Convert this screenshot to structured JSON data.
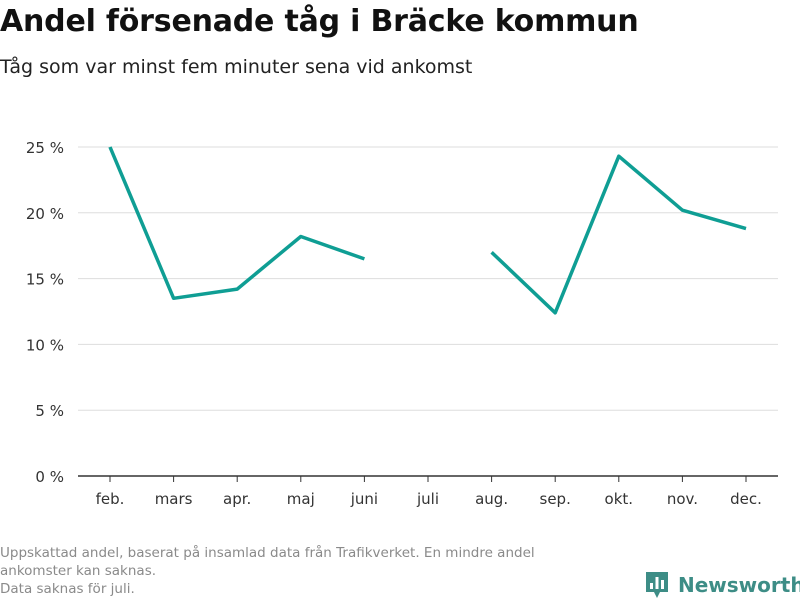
{
  "header": {
    "title": "Andel försenade tåg i Bräcke kommun",
    "subtitle": "Tåg som var minst fem minuter sena vid ankomst"
  },
  "footer": {
    "note_lines": [
      "Uppskattad andel, baserat på insamlad data från Trafikverket. En mindre andel",
      "ankomster kan saknas.",
      "Data saknas för juli."
    ],
    "brand": "Newsworthy",
    "brand_icon": "bar-chart-logo-icon"
  },
  "colors": {
    "line": "#0f9e94",
    "grid": "#dddddd",
    "axis": "#333333",
    "brand": "#3d8d86"
  },
  "chart_data": {
    "type": "line",
    "title": "Andel försenade tåg i Bräcke kommun",
    "subtitle": "Tåg som var minst fem minuter sena vid ankomst",
    "categories": [
      "feb.",
      "mars",
      "apr.",
      "maj",
      "juni",
      "juli",
      "aug.",
      "sep.",
      "okt.",
      "nov.",
      "dec."
    ],
    "series": [
      {
        "values": [
          25.0,
          13.5,
          14.2,
          18.2,
          16.5,
          null,
          17.0,
          12.4,
          24.3,
          20.2,
          18.8
        ]
      }
    ],
    "ylim": [
      0,
      25
    ],
    "yticks": [
      0,
      5,
      10,
      15,
      20,
      25
    ],
    "ytick_labels": [
      "0 %",
      "5 %",
      "10 %",
      "15 %",
      "20 %",
      "25 %"
    ],
    "xlabel": "",
    "ylabel": "",
    "grid": true,
    "legend": "none"
  }
}
